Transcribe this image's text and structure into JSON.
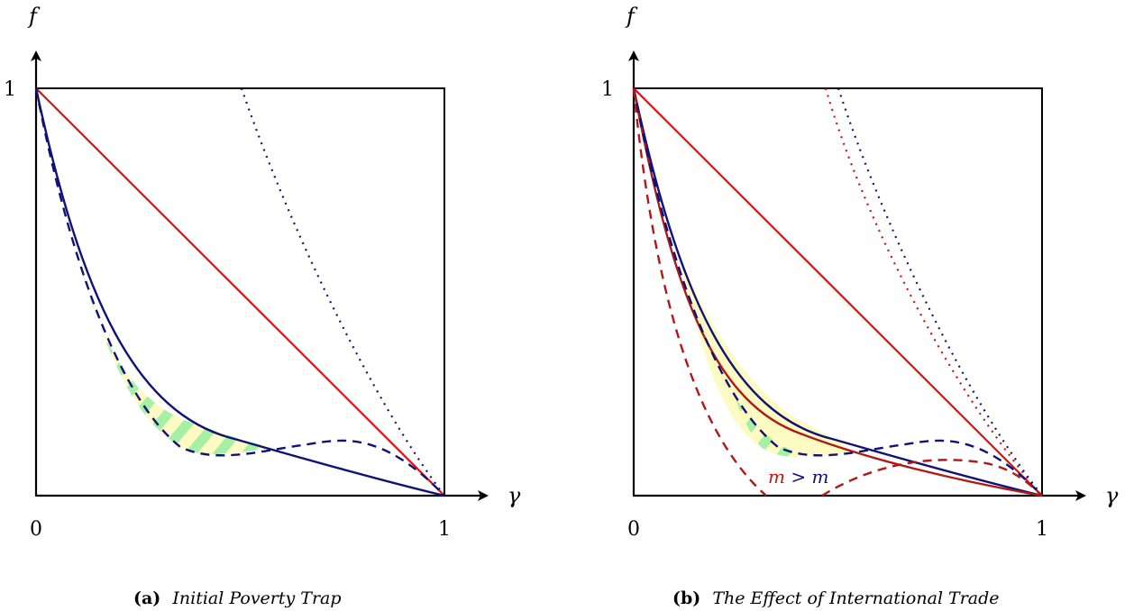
{
  "colors": {
    "red": "#dd1111",
    "navy": "#111177",
    "darkred": "#b01818",
    "yellow": "#fdfbc2",
    "green": "#a6f0a6"
  },
  "panel_a": {
    "y_axis_label": "f",
    "x_axis_label": "γ",
    "y_tick_1": "1",
    "x_tick_0": "0",
    "x_tick_1": "1",
    "caption_tag": "(a)",
    "caption_text": "Initial Poverty Trap"
  },
  "panel_b": {
    "y_axis_label": "f",
    "x_axis_label": "γ",
    "y_tick_1": "1",
    "x_tick_0": "0",
    "x_tick_1": "1",
    "m_label_left": "m",
    "m_label_op": ">",
    "m_label_right": "m",
    "caption_tag": "(b)",
    "caption_text": "The Effect of International Trade"
  }
}
